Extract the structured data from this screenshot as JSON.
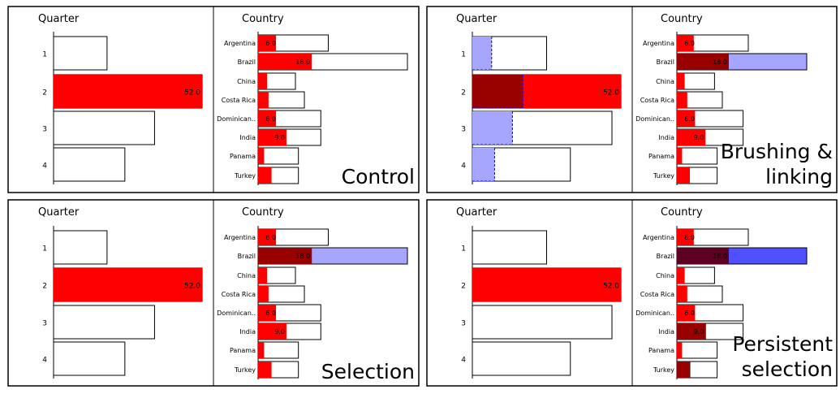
{
  "chart_data": [
    {
      "type": "bar",
      "title": "Control",
      "title_lines": [
        "Control"
      ],
      "quarter_title": "Quarter",
      "country_title": "Country",
      "quarters": {
        "categories": [
          "1",
          "2",
          "3",
          "4"
        ],
        "values": [
          36,
          100,
          68,
          48
        ],
        "highlight": [
          0,
          100,
          0,
          0
        ],
        "selected": [
          0,
          0,
          0,
          0
        ],
        "brushed": [
          0,
          0,
          0,
          0
        ],
        "labels": [
          "",
          "52.0",
          "",
          ""
        ]
      },
      "countries": {
        "categories": [
          "Argentina",
          "Brazil",
          "China",
          "Costa Rica",
          "Dominican..",
          "India",
          "Panama",
          "Turkey"
        ],
        "values": [
          47,
          100,
          25,
          31,
          42,
          42,
          27,
          27
        ],
        "highlight": [
          12,
          36,
          6,
          7,
          12,
          19,
          4,
          9
        ],
        "selected": [
          0,
          0,
          0,
          0,
          0,
          0,
          0,
          0
        ],
        "brushed": [
          0,
          0,
          0,
          0,
          0,
          0,
          0,
          0
        ],
        "labels": [
          "6.0",
          "18.0",
          "",
          "",
          "6.0",
          "9.0",
          "",
          ""
        ]
      }
    },
    {
      "type": "bar",
      "title": "Brushing & linking",
      "title_lines": [
        "Brushing &",
        "linking"
      ],
      "quarter_title": "Quarter",
      "country_title": "Country",
      "quarters": {
        "categories": [
          "1",
          "2",
          "3",
          "4"
        ],
        "values": [
          50,
          100,
          94,
          66
        ],
        "highlight": [
          0,
          100,
          0,
          0
        ],
        "selected": [
          0,
          0,
          0,
          0
        ],
        "brushed": [
          13,
          34,
          27,
          15
        ],
        "labels": [
          "",
          "52.0",
          "",
          ""
        ]
      },
      "countries": {
        "categories": [
          "Argentina",
          "Brazil",
          "China",
          "Costa Rica",
          "Dominican..",
          "India",
          "Panama",
          "Turkey"
        ],
        "values": [
          55,
          100,
          29,
          35,
          51,
          51,
          31,
          31
        ],
        "highlight": [
          13,
          40,
          6,
          8,
          14,
          22,
          4,
          10
        ],
        "selected": [
          0,
          40,
          0,
          0,
          0,
          0,
          0,
          0
        ],
        "brushed": [
          0,
          0,
          0,
          0,
          0,
          0,
          0,
          0
        ],
        "labels": [
          "6.0",
          "18.0",
          "",
          "",
          "6.0",
          "9.0",
          "",
          ""
        ]
      }
    },
    {
      "type": "bar",
      "title": "Selection",
      "title_lines": [
        "Selection"
      ],
      "quarter_title": "Quarter",
      "country_title": "Country",
      "quarters": {
        "categories": [
          "1",
          "2",
          "3",
          "4"
        ],
        "values": [
          36,
          100,
          68,
          48
        ],
        "highlight": [
          0,
          100,
          0,
          0
        ],
        "selected": [
          0,
          0,
          0,
          0
        ],
        "brushed": [
          0,
          0,
          0,
          0
        ],
        "labels": [
          "",
          "52.0",
          "",
          ""
        ]
      },
      "countries": {
        "categories": [
          "Argentina",
          "Brazil",
          "China",
          "Costa Rica",
          "Dominican..",
          "India",
          "Panama",
          "Turkey"
        ],
        "values": [
          47,
          100,
          25,
          31,
          42,
          42,
          27,
          27
        ],
        "highlight": [
          12,
          36,
          6,
          7,
          12,
          19,
          4,
          9
        ],
        "selected": [
          0,
          36,
          0,
          0,
          0,
          0,
          0,
          0
        ],
        "brushed": [
          0,
          0,
          0,
          0,
          0,
          0,
          0,
          0
        ],
        "labels": [
          "6.0",
          "18.0",
          "",
          "",
          "6.0",
          "9.0",
          "",
          ""
        ]
      }
    },
    {
      "type": "bar",
      "title": "Persistent selection",
      "title_lines": [
        "Persistent",
        "selection"
      ],
      "quarter_title": "Quarter",
      "country_title": "Country",
      "quarters": {
        "categories": [
          "1",
          "2",
          "3",
          "4"
        ],
        "values": [
          50,
          100,
          94,
          66
        ],
        "highlight": [
          0,
          100,
          0,
          0
        ],
        "selected": [
          0,
          0,
          0,
          0
        ],
        "brushed": [
          0,
          0,
          0,
          0
        ],
        "labels": [
          "",
          "52.0",
          "",
          ""
        ]
      },
      "countries": {
        "categories": [
          "Argentina",
          "Brazil",
          "China",
          "Costa Rica",
          "Dominican..",
          "India",
          "Panama",
          "Turkey"
        ],
        "values": [
          55,
          100,
          29,
          35,
          51,
          51,
          31,
          31
        ],
        "highlight": [
          13,
          40,
          6,
          8,
          14,
          22,
          4,
          10
        ],
        "selected": [
          0,
          40,
          0,
          0,
          0,
          22,
          0,
          10
        ],
        "brushed": [
          0,
          0,
          0,
          0,
          0,
          0,
          0,
          0
        ],
        "labels": [
          "6.0",
          "18.0",
          "",
          "",
          "6.0",
          "9.0",
          "",
          ""
        ]
      }
    }
  ],
  "colors": {
    "highlight": "#ff0000",
    "selected_overlap": "#990000",
    "selected_rest": "#a6a6ff",
    "persistent_overlap": "#5e0022",
    "persistent_rest": "#5050ff",
    "persistent_rest_light": "#b3b3ff",
    "brush": "#a6a6ff",
    "brush_edge": "#0000ff",
    "outline": "#000000",
    "background": "#ffffff"
  }
}
